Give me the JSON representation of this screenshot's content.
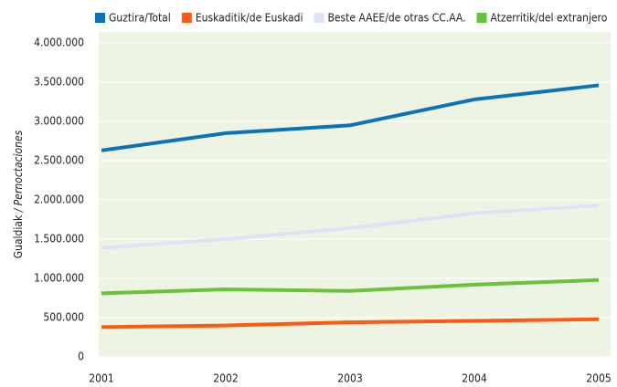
{
  "chart_data": {
    "type": "line",
    "ylabel": [
      "Gualdiak",
      "/ Pernoctaciones"
    ],
    "x": [
      2001,
      2002,
      2003,
      2004,
      2005
    ],
    "xlim": [
      2001,
      2005
    ],
    "xticks": [
      2001,
      2002,
      2003,
      2004,
      2005
    ],
    "ylim": [
      0,
      4000000
    ],
    "yticks": [
      0,
      {
        "value": 500000,
        "label": "500.000"
      },
      {
        "value": 1000000,
        "label": "1.000.000"
      },
      {
        "value": 1500000,
        "label": "1.500.000"
      },
      {
        "value": 2000000,
        "label": "2.000.000"
      },
      {
        "value": 2500000,
        "label": "2.500.000"
      },
      {
        "value": 3000000,
        "label": "3.000.000"
      },
      {
        "value": 3500000,
        "label": "3.500.000"
      },
      {
        "value": 4000000,
        "label": "4.000.000"
      }
    ],
    "grid": true,
    "legend": "top",
    "series": [
      {
        "name": "Guztira/Total",
        "color": "#0b73b7",
        "values": [
          2630000,
          2850000,
          2950000,
          3280000,
          3460000
        ]
      },
      {
        "name": "Euskaditik/de Euskadi",
        "color": "#ff5a12",
        "values": [
          380000,
          400000,
          440000,
          460000,
          480000
        ]
      },
      {
        "name": "Beste AAEE/de otras CC.AA.",
        "color": "#dde3f3",
        "values": [
          1390000,
          1500000,
          1640000,
          1830000,
          1930000
        ]
      },
      {
        "name": "Atzerritik/del extranjero",
        "color": "#6cc13a",
        "values": [
          810000,
          860000,
          840000,
          920000,
          980000
        ]
      }
    ]
  }
}
